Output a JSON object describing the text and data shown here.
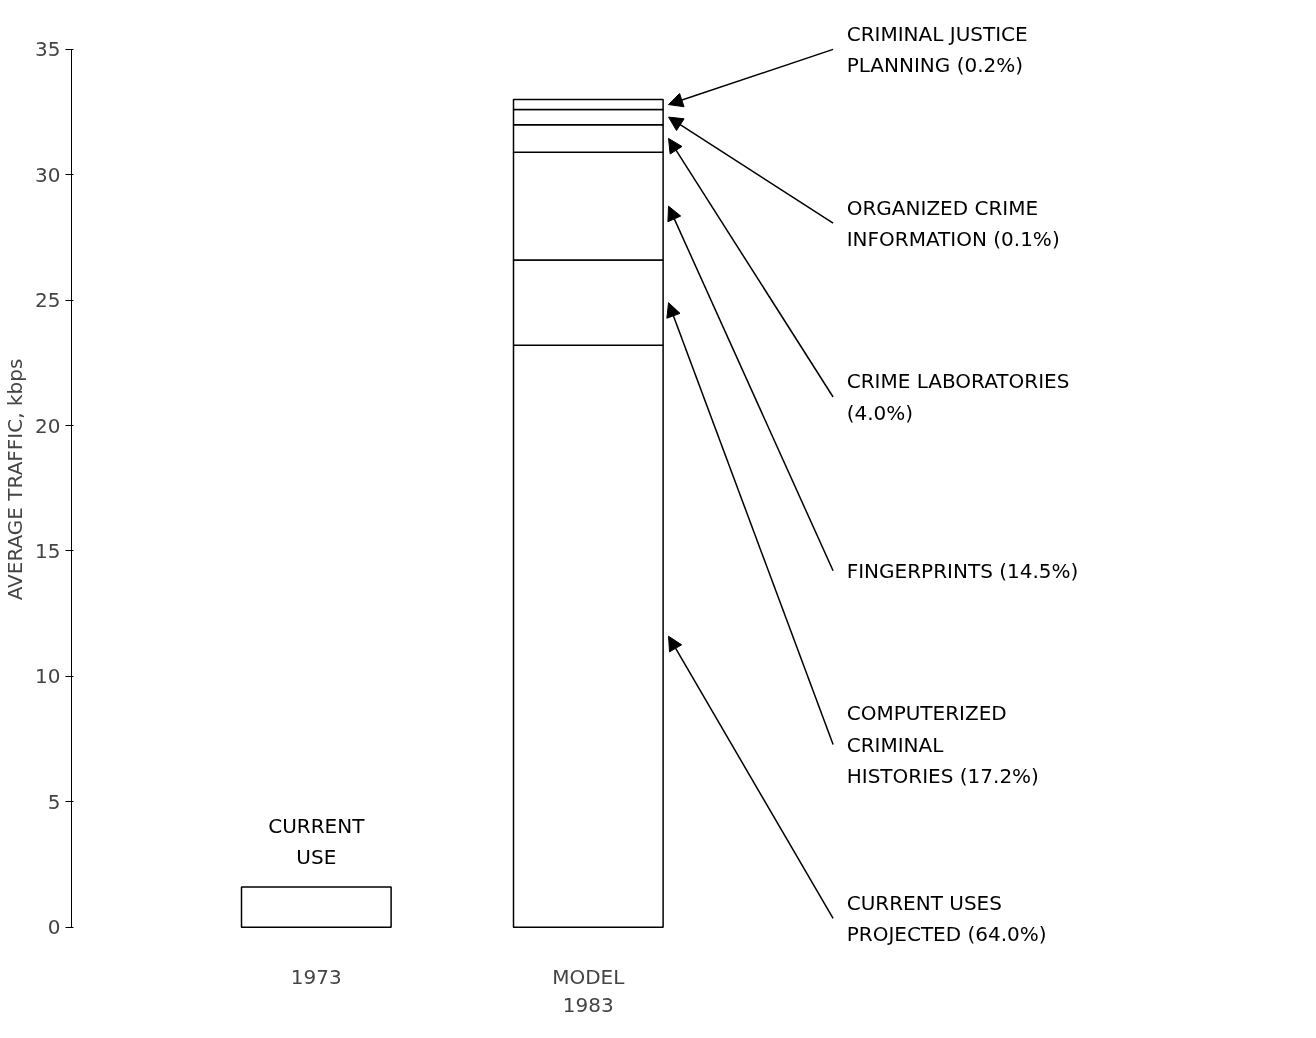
{
  "chart_data": {
    "type": "bar",
    "stacked": true,
    "ylabel": "AVERAGE TRAFFIC, kbps",
    "categories": [
      "1973",
      "MODEL\n1983"
    ],
    "series": [
      {
        "name": "CURRENT\nUSE",
        "color": "#ffffff",
        "values": [
          1.6,
          null
        ]
      },
      {
        "name": "CURRENT USES\nPROJECTED (64.0%)",
        "color": "#ffffff",
        "values": [
          null,
          23.2
        ]
      },
      {
        "name": "COMPUTERIZED\nCRIMINAL\nHISTORIES (17.2%)",
        "color": "#ffffff",
        "values": [
          null,
          3.4
        ]
      },
      {
        "name": "FINGERPRINTS (14.5%)",
        "color": "#ffffff",
        "values": [
          null,
          4.3
        ]
      },
      {
        "name": "CRIME LABORATORIES\n(4.0%)",
        "color": "#ffffff",
        "values": [
          null,
          1.1
        ]
      },
      {
        "name": "ORGANIZED CRIME\nINFORMATION (0.1%)",
        "color": "#ffffff",
        "values": [
          null,
          0.6
        ]
      },
      {
        "name": "CRIMINAL JUSTICE\nPLANNING (0.2%)",
        "color": "#ffffff",
        "values": [
          null,
          0.4
        ]
      }
    ],
    "ylim": [
      0,
      35
    ],
    "yticks": [
      0,
      5,
      10,
      15,
      20,
      25,
      30,
      35
    ],
    "grid": false
  }
}
